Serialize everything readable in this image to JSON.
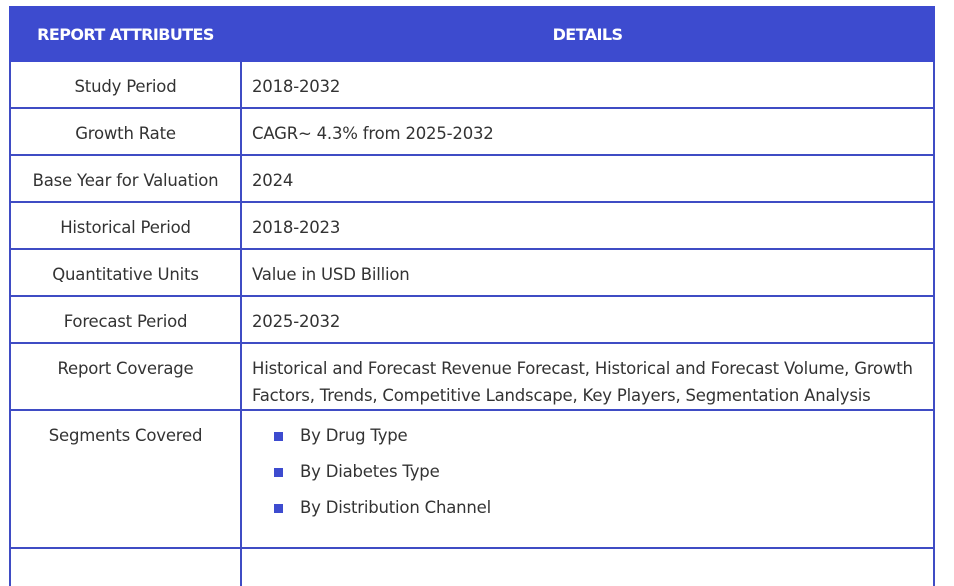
{
  "table": {
    "headers": [
      "REPORT ATTRIBUTES",
      "DETAILS"
    ],
    "rows": [
      {
        "label": "Study Period",
        "value": "2018-2032"
      },
      {
        "label": "Growth Rate",
        "value": "CAGR~ 4.3% from 2025-2032"
      },
      {
        "label": "Base Year for Valuation",
        "value": "2024"
      },
      {
        "label": "Historical Period",
        "value": "2018-2023"
      },
      {
        "label": "Quantitative Units",
        "value": "Value in USD Billion"
      },
      {
        "label": "Forecast Period",
        "value": "2025-2032"
      },
      {
        "label": "Report Coverage",
        "value": "Historical and Forecast Revenue Forecast, Historical and Forecast Volume, Growth Factors, Trends, Competitive Landscape, Key Players, Segmentation Analysis"
      },
      {
        "label": "Segments Covered",
        "items": [
          "By Drug Type",
          "By Diabetes Type",
          "By Distribution Channel"
        ]
      }
    ]
  }
}
